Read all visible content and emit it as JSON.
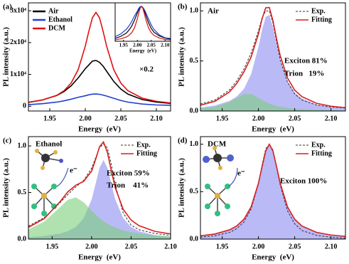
{
  "chart_data": [
    {
      "type": "line",
      "panel_label": "(a)",
      "xlabel": "Energy  (eV)",
      "ylabel": "PL intensity (a.u.)",
      "x": [
        1.92,
        1.94,
        1.96,
        1.97,
        1.98,
        1.99,
        2.0,
        2.005,
        2.01,
        2.015,
        2.02,
        2.025,
        2.03,
        2.04,
        2.05,
        2.06,
        2.08,
        2.1,
        2.12
      ],
      "series": [
        {
          "name": "Air",
          "color": "#000000",
          "style": "solid",
          "values": [
            1200,
            2000,
            3400,
            4600,
            6400,
            8900,
            11800,
            13000,
            14200,
            14400,
            13800,
            12600,
            11000,
            7800,
            5400,
            3800,
            2100,
            1300,
            900
          ]
        },
        {
          "name": "Ethanol",
          "color": "#1f3fd0",
          "style": "solid",
          "values": [
            500,
            800,
            1300,
            1700,
            2200,
            2800,
            3300,
            3600,
            3800,
            3850,
            3750,
            3500,
            3200,
            2500,
            1800,
            1300,
            700,
            400,
            300
          ]
        },
        {
          "name": "DCM",
          "color": "#e01010",
          "style": "solid",
          "values": [
            1250,
            1960,
            3450,
            4870,
            7270,
            11500,
            18900,
            23600,
            27800,
            29500,
            27800,
            23600,
            18900,
            11500,
            7270,
            4870,
            2550,
            1550,
            1040
          ]
        }
      ],
      "xlim": [
        1.92,
        2.12
      ],
      "xticks": [
        1.95,
        {
          "value": 2.0,
          "label": "2.00"
        },
        2.05,
        {
          "value": 2.1,
          "label": "2.10"
        }
      ],
      "ylim": [
        -1500,
        32500
      ],
      "yticks": [
        0,
        {
          "value": 10000,
          "label": "1x10⁴"
        },
        {
          "value": 20000,
          "label": "2x10⁴"
        },
        {
          "value": 30000,
          "label": "3x10⁴"
        }
      ],
      "legend": "upper left",
      "annotations": [
        "×0.2"
      ],
      "inset": {
        "type": "line",
        "xlabel": "Energy  (eV)",
        "x": [
          1.92,
          1.94,
          1.96,
          1.97,
          1.98,
          1.99,
          2.0,
          2.005,
          2.01,
          2.015,
          2.02,
          2.025,
          2.03,
          2.04,
          2.05,
          2.06,
          2.08,
          2.1,
          2.12
        ],
        "series": [
          {
            "color": "#000000",
            "style": "solid",
            "values": [
              0.08,
              0.14,
              0.23,
              0.32,
              0.44,
              0.61,
              0.81,
              0.9,
              0.98,
              1.0,
              0.96,
              0.87,
              0.76,
              0.54,
              0.37,
              0.26,
              0.15,
              0.09,
              0.06
            ]
          },
          {
            "color": "#1f3fd0",
            "style": "solid",
            "values": [
              0.13,
              0.21,
              0.34,
              0.44,
              0.57,
              0.73,
              0.86,
              0.94,
              0.99,
              1.0,
              0.97,
              0.91,
              0.83,
              0.65,
              0.47,
              0.34,
              0.18,
              0.1,
              0.08
            ]
          },
          {
            "color": "#e01010",
            "style": "solid",
            "values": [
              0.04,
              0.07,
              0.12,
              0.17,
              0.25,
              0.39,
              0.64,
              0.8,
              0.94,
              1.0,
              0.94,
              0.8,
              0.64,
              0.39,
              0.25,
              0.17,
              0.09,
              0.05,
              0.04
            ]
          }
        ],
        "xlim": [
          1.92,
          2.12
        ],
        "xticks": [
          1.95,
          {
            "value": 2.0,
            "label": "2.00"
          },
          2.05,
          {
            "value": 2.1,
            "label": "2.10"
          }
        ],
        "ylim": [
          0,
          1.1
        ]
      }
    },
    {
      "type": "line",
      "panel_label": "(b)",
      "xlabel": "Energy  (eV)",
      "ylabel": "PL intensity (a.u.)",
      "x": [
        1.92,
        1.94,
        1.96,
        1.97,
        1.98,
        1.99,
        2.0,
        2.005,
        2.01,
        2.015,
        2.02,
        2.025,
        2.03,
        2.04,
        2.05,
        2.06,
        2.08,
        2.1,
        2.12
      ],
      "components": [
        {
          "color": "#8c8cf0",
          "values": [
            0.035,
            0.055,
            0.1,
            0.145,
            0.22,
            0.37,
            0.64,
            0.81,
            0.94,
            0.96,
            0.84,
            0.67,
            0.51,
            0.3,
            0.185,
            0.125,
            0.065,
            0.04,
            0.027
          ]
        },
        {
          "color": "#7ccf7c",
          "values": [
            0.023,
            0.042,
            0.09,
            0.13,
            0.17,
            0.17,
            0.13,
            0.11,
            0.09,
            0.074,
            0.061,
            0.051,
            0.042,
            0.031,
            0.023,
            0.018,
            0.012,
            0.008,
            0.006
          ]
        }
      ],
      "series": [
        {
          "name": "Exp.",
          "color": "#333333",
          "style": "dashed",
          "values": [
            0.07,
            0.11,
            0.21,
            0.3,
            0.42,
            0.58,
            0.8,
            0.93,
            1.0,
            1.0,
            0.88,
            0.69,
            0.51,
            0.29,
            0.17,
            0.11,
            0.06,
            0.04,
            0.03
          ]
        },
        {
          "name": "Fitting",
          "color": "#d62020",
          "style": "solid",
          "values": [
            0.058,
            0.097,
            0.19,
            0.275,
            0.39,
            0.54,
            0.77,
            0.92,
            1.03,
            1.034,
            0.901,
            0.721,
            0.552,
            0.331,
            0.208,
            0.143,
            0.077,
            0.048,
            0.033
          ]
        }
      ],
      "xlim": [
        1.92,
        2.12
      ],
      "xticks": [
        1.95,
        {
          "value": 2.0,
          "label": "2.00"
        },
        2.05,
        {
          "value": 2.1,
          "label": "2.10"
        }
      ],
      "ylim": [
        0,
        1.08
      ],
      "yticks": [
        {
          "value": 0,
          "label": "0.0"
        },
        0.5,
        {
          "value": 1,
          "label": "1.0"
        }
      ],
      "legend": "upper right",
      "annotations": [
        "Air",
        "Exciton 81%",
        "Trion   19%"
      ]
    },
    {
      "type": "line",
      "panel_label": "(c)",
      "xlabel": "Energy  (eV)",
      "ylabel": "PL intensity (a.u.)",
      "x": [
        1.92,
        1.94,
        1.96,
        1.97,
        1.98,
        1.99,
        2.0,
        2.005,
        2.01,
        2.015,
        2.02,
        2.025,
        2.03,
        2.04,
        2.05,
        2.06,
        2.08,
        2.1
      ],
      "components": [
        {
          "color": "#8c8cf0",
          "values": [
            0.021,
            0.033,
            0.059,
            0.085,
            0.13,
            0.225,
            0.425,
            0.59,
            0.765,
            0.85,
            0.765,
            0.59,
            0.425,
            0.225,
            0.13,
            0.085,
            0.043,
            0.026
          ]
        },
        {
          "color": "#7ccf7c",
          "values": [
            0.105,
            0.187,
            0.342,
            0.423,
            0.448,
            0.395,
            0.305,
            0.263,
            0.225,
            0.193,
            0.165,
            0.142,
            0.124,
            0.095,
            0.074,
            0.059,
            0.04,
            0.029
          ]
        }
      ],
      "series": [
        {
          "name": "Exp.",
          "color": "#333333",
          "style": "dashed",
          "values": [
            0.14,
            0.23,
            0.39,
            0.48,
            0.56,
            0.63,
            0.76,
            0.87,
            0.98,
            1.02,
            0.98,
            0.8,
            0.58,
            0.28,
            0.15,
            0.1,
            0.06,
            0.04
          ]
        },
        {
          "name": "Fitting",
          "color": "#d62020",
          "style": "solid",
          "values": [
            0.126,
            0.22,
            0.401,
            0.508,
            0.578,
            0.62,
            0.73,
            0.853,
            0.99,
            1.043,
            0.93,
            0.732,
            0.549,
            0.32,
            0.204,
            0.144,
            0.083,
            0.055
          ]
        }
      ],
      "xlim": [
        1.92,
        2.1
      ],
      "xticks": [
        1.95,
        {
          "value": 2.0,
          "label": "2.00"
        },
        2.05,
        {
          "value": 2.1,
          "label": "2.10"
        }
      ],
      "ylim": [
        0,
        1.1
      ],
      "yticks": [
        {
          "value": 0,
          "label": "0.0"
        },
        0.5,
        {
          "value": 1,
          "label": "1.0"
        }
      ],
      "legend": "upper right",
      "annotations": [
        "Ethanol",
        "Exciton 59%",
        "Trion    41%",
        "e⁻"
      ]
    },
    {
      "type": "line",
      "panel_label": "(d)",
      "xlabel": "Energy  (eV)",
      "ylabel": "PL intensity (a.u.)",
      "x": [
        1.92,
        1.94,
        1.96,
        1.97,
        1.98,
        1.99,
        2.0,
        2.005,
        2.01,
        2.015,
        2.02,
        2.025,
        2.03,
        2.04,
        2.05,
        2.06,
        2.08,
        2.1,
        2.12
      ],
      "components": [
        {
          "color": "#8c8cf0",
          "values": [
            0.0346,
            0.054,
            0.097,
            0.138,
            0.209,
            0.341,
            0.59,
            0.764,
            0.928,
            1.0,
            0.928,
            0.764,
            0.59,
            0.341,
            0.209,
            0.138,
            0.071,
            0.043,
            0.0286
          ]
        }
      ],
      "series": [
        {
          "name": "Exp.",
          "color": "#333333",
          "style": "dashed",
          "values": [
            0.02,
            0.035,
            0.07,
            0.11,
            0.18,
            0.32,
            0.58,
            0.78,
            0.95,
            1.0,
            0.94,
            0.76,
            0.57,
            0.3,
            0.16,
            0.09,
            0.04,
            0.02,
            0.01
          ]
        },
        {
          "name": "Fitting",
          "color": "#d62020",
          "style": "solid",
          "values": [
            0.0346,
            0.054,
            0.097,
            0.138,
            0.209,
            0.341,
            0.59,
            0.764,
            0.928,
            1.0,
            0.928,
            0.764,
            0.59,
            0.341,
            0.209,
            0.138,
            0.071,
            0.043,
            0.0286
          ]
        }
      ],
      "xlim": [
        1.92,
        2.12
      ],
      "xticks": [
        1.95,
        {
          "value": 2.0,
          "label": "2.00"
        },
        2.05,
        {
          "value": 2.1,
          "label": "2.10"
        }
      ],
      "ylim": [
        0,
        1.08
      ],
      "yticks": [
        {
          "value": 0,
          "label": "0.0"
        },
        0.5,
        {
          "value": 1,
          "label": "1.0"
        }
      ],
      "legend": "upper right",
      "annotations": [
        "DCM",
        "Exciton 100%",
        "e⁻"
      ]
    }
  ]
}
